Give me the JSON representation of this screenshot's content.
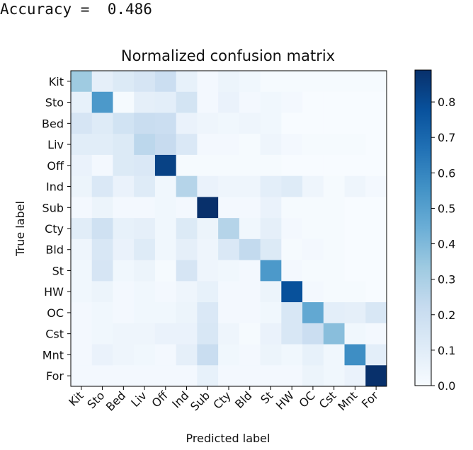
{
  "accuracy": {
    "label": "Accuracy =  ",
    "value": "0.486"
  },
  "chart_data": {
    "type": "heatmap",
    "title": "Normalized confusion matrix",
    "xlabel": "Predicted label",
    "ylabel": "True label",
    "x_categories": [
      "Kit",
      "Sto",
      "Bed",
      "Liv",
      "Off",
      "Ind",
      "Sub",
      "Cty",
      "Bld",
      "St",
      "HW",
      "OC",
      "Cst",
      "Mnt",
      "For"
    ],
    "y_categories": [
      "Kit",
      "Sto",
      "Bed",
      "Liv",
      "Off",
      "Ind",
      "Sub",
      "Cty",
      "Bld",
      "St",
      "HW",
      "OC",
      "Cst",
      "Mnt",
      "For"
    ],
    "colormap": "Blues",
    "color_stops": [
      "#f7fbff",
      "#deebf7",
      "#c6dbef",
      "#9ecae1",
      "#6baed6",
      "#4292c6",
      "#2171b5",
      "#08519c",
      "#08306b"
    ],
    "vmin": 0.0,
    "vmax": 0.89,
    "colorbar_ticks": [
      "0.0",
      "0.1",
      "0.2",
      "0.3",
      "0.4",
      "0.5",
      "0.6",
      "0.7",
      "0.8"
    ],
    "values": [
      [
        0.33,
        0.08,
        0.12,
        0.15,
        0.2,
        0.07,
        0.02,
        0.05,
        0.03,
        0.01,
        0.01,
        0.01,
        0.01,
        0.01,
        0.01
      ],
      [
        0.07,
        0.53,
        0.01,
        0.08,
        0.09,
        0.16,
        0.02,
        0.06,
        0.02,
        0.03,
        0.02,
        0.0,
        0.0,
        0.0,
        0.0
      ],
      [
        0.15,
        0.11,
        0.17,
        0.21,
        0.2,
        0.06,
        0.04,
        0.03,
        0.04,
        0.03,
        0.0,
        0.0,
        0.0,
        0.0,
        0.0
      ],
      [
        0.1,
        0.1,
        0.12,
        0.25,
        0.22,
        0.13,
        0.02,
        0.02,
        0.01,
        0.04,
        0.02,
        0.01,
        0.01,
        0.01,
        0.0
      ],
      [
        0.06,
        0.02,
        0.12,
        0.13,
        0.83,
        0.01,
        0.01,
        0.01,
        0.01,
        0.01,
        0.0,
        0.0,
        0.0,
        0.0,
        0.0
      ],
      [
        0.05,
        0.13,
        0.06,
        0.11,
        0.03,
        0.27,
        0.06,
        0.04,
        0.04,
        0.09,
        0.11,
        0.04,
        0.01,
        0.04,
        0.02
      ],
      [
        0.02,
        0.05,
        0.02,
        0.02,
        0.03,
        0.02,
        0.89,
        0.02,
        0.02,
        0.06,
        0.01,
        0.01,
        0.01,
        0.0,
        0.0
      ],
      [
        0.1,
        0.18,
        0.07,
        0.08,
        0.03,
        0.12,
        0.05,
        0.27,
        0.03,
        0.08,
        0.02,
        0.01,
        0.01,
        0.0,
        0.0
      ],
      [
        0.04,
        0.14,
        0.06,
        0.11,
        0.03,
        0.08,
        0.04,
        0.13,
        0.23,
        0.12,
        0.01,
        0.02,
        0.01,
        0.0,
        0.0
      ],
      [
        0.03,
        0.15,
        0.03,
        0.05,
        0.01,
        0.15,
        0.04,
        0.03,
        0.02,
        0.53,
        0.02,
        0.01,
        0.01,
        0.0,
        0.0
      ],
      [
        0.03,
        0.05,
        0.02,
        0.03,
        0.02,
        0.04,
        0.07,
        0.02,
        0.02,
        0.05,
        0.78,
        0.02,
        0.01,
        0.01,
        0.0
      ],
      [
        0.02,
        0.03,
        0.02,
        0.03,
        0.03,
        0.05,
        0.13,
        0.02,
        0.02,
        0.03,
        0.14,
        0.47,
        0.09,
        0.08,
        0.14
      ],
      [
        0.02,
        0.03,
        0.04,
        0.04,
        0.06,
        0.06,
        0.14,
        0.04,
        0.01,
        0.06,
        0.14,
        0.2,
        0.38,
        0.03,
        0.02
      ],
      [
        0.02,
        0.06,
        0.04,
        0.03,
        0.02,
        0.08,
        0.21,
        0.03,
        0.02,
        0.05,
        0.03,
        0.07,
        0.03,
        0.57,
        0.09
      ],
      [
        0.02,
        0.02,
        0.02,
        0.02,
        0.02,
        0.02,
        0.07,
        0.02,
        0.02,
        0.02,
        0.02,
        0.05,
        0.03,
        0.06,
        0.89
      ]
    ]
  }
}
